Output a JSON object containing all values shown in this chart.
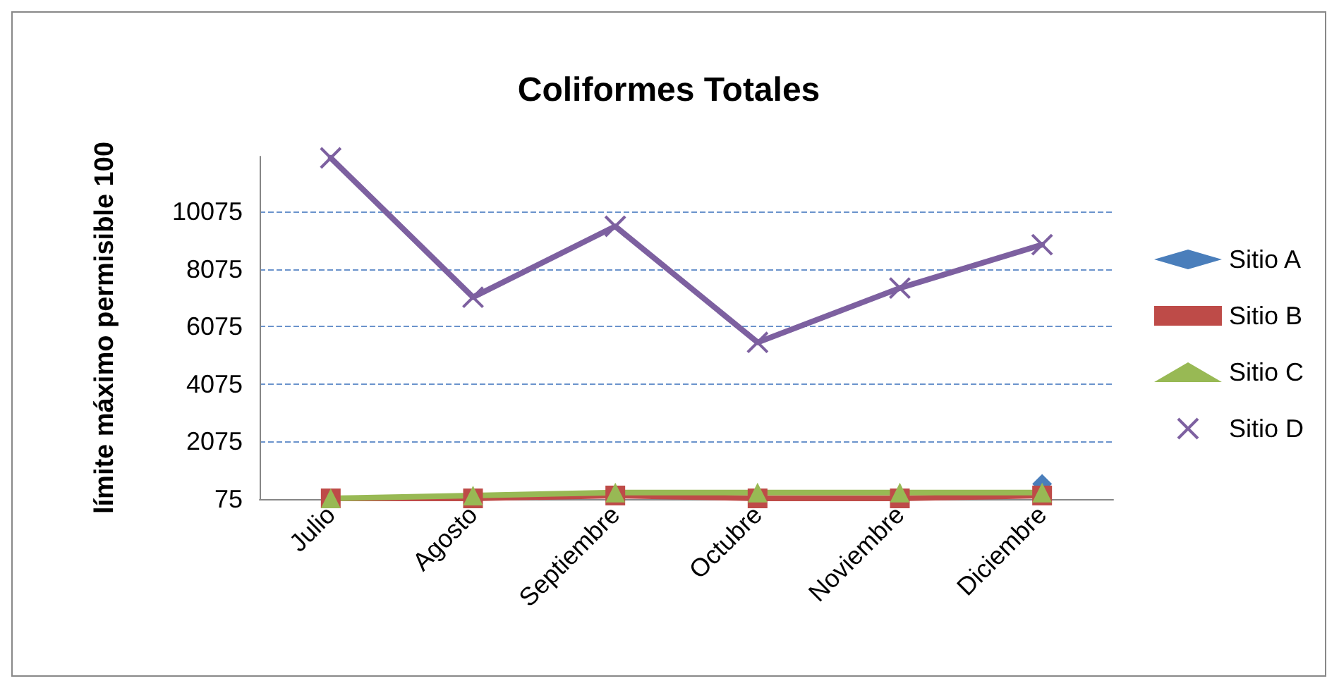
{
  "chart_data": {
    "type": "line",
    "title": "Coliformes Totales",
    "ylabel": "límite máximo permisible 100",
    "categories": [
      "Julio",
      "Agosto",
      "Septiembre",
      "Octubre",
      "Noviembre",
      "Diciembre"
    ],
    "series": [
      {
        "name": "Sitio A",
        "color": "#4a7ebb",
        "marker": "diamond",
        "values": [
          null,
          null,
          null,
          null,
          null,
          600
        ]
      },
      {
        "name": "Sitio B",
        "color": "#be4b48",
        "marker": "square",
        "values": [
          100,
          100,
          200,
          100,
          100,
          200
        ]
      },
      {
        "name": "Sitio C",
        "color": "#98b954",
        "marker": "triangle",
        "values": [
          100,
          200,
          300,
          300,
          300,
          300
        ]
      },
      {
        "name": "Sitio D",
        "color": "#7d60a0",
        "marker": "cross",
        "values": [
          11950,
          7100,
          9570,
          5530,
          7420,
          8930
        ]
      }
    ],
    "ylim": [
      75,
      12000
    ],
    "yticks": [
      75,
      2075,
      4075,
      6075,
      8075,
      10075
    ],
    "grid": "y",
    "line_style": "solid",
    "legend": "right"
  }
}
